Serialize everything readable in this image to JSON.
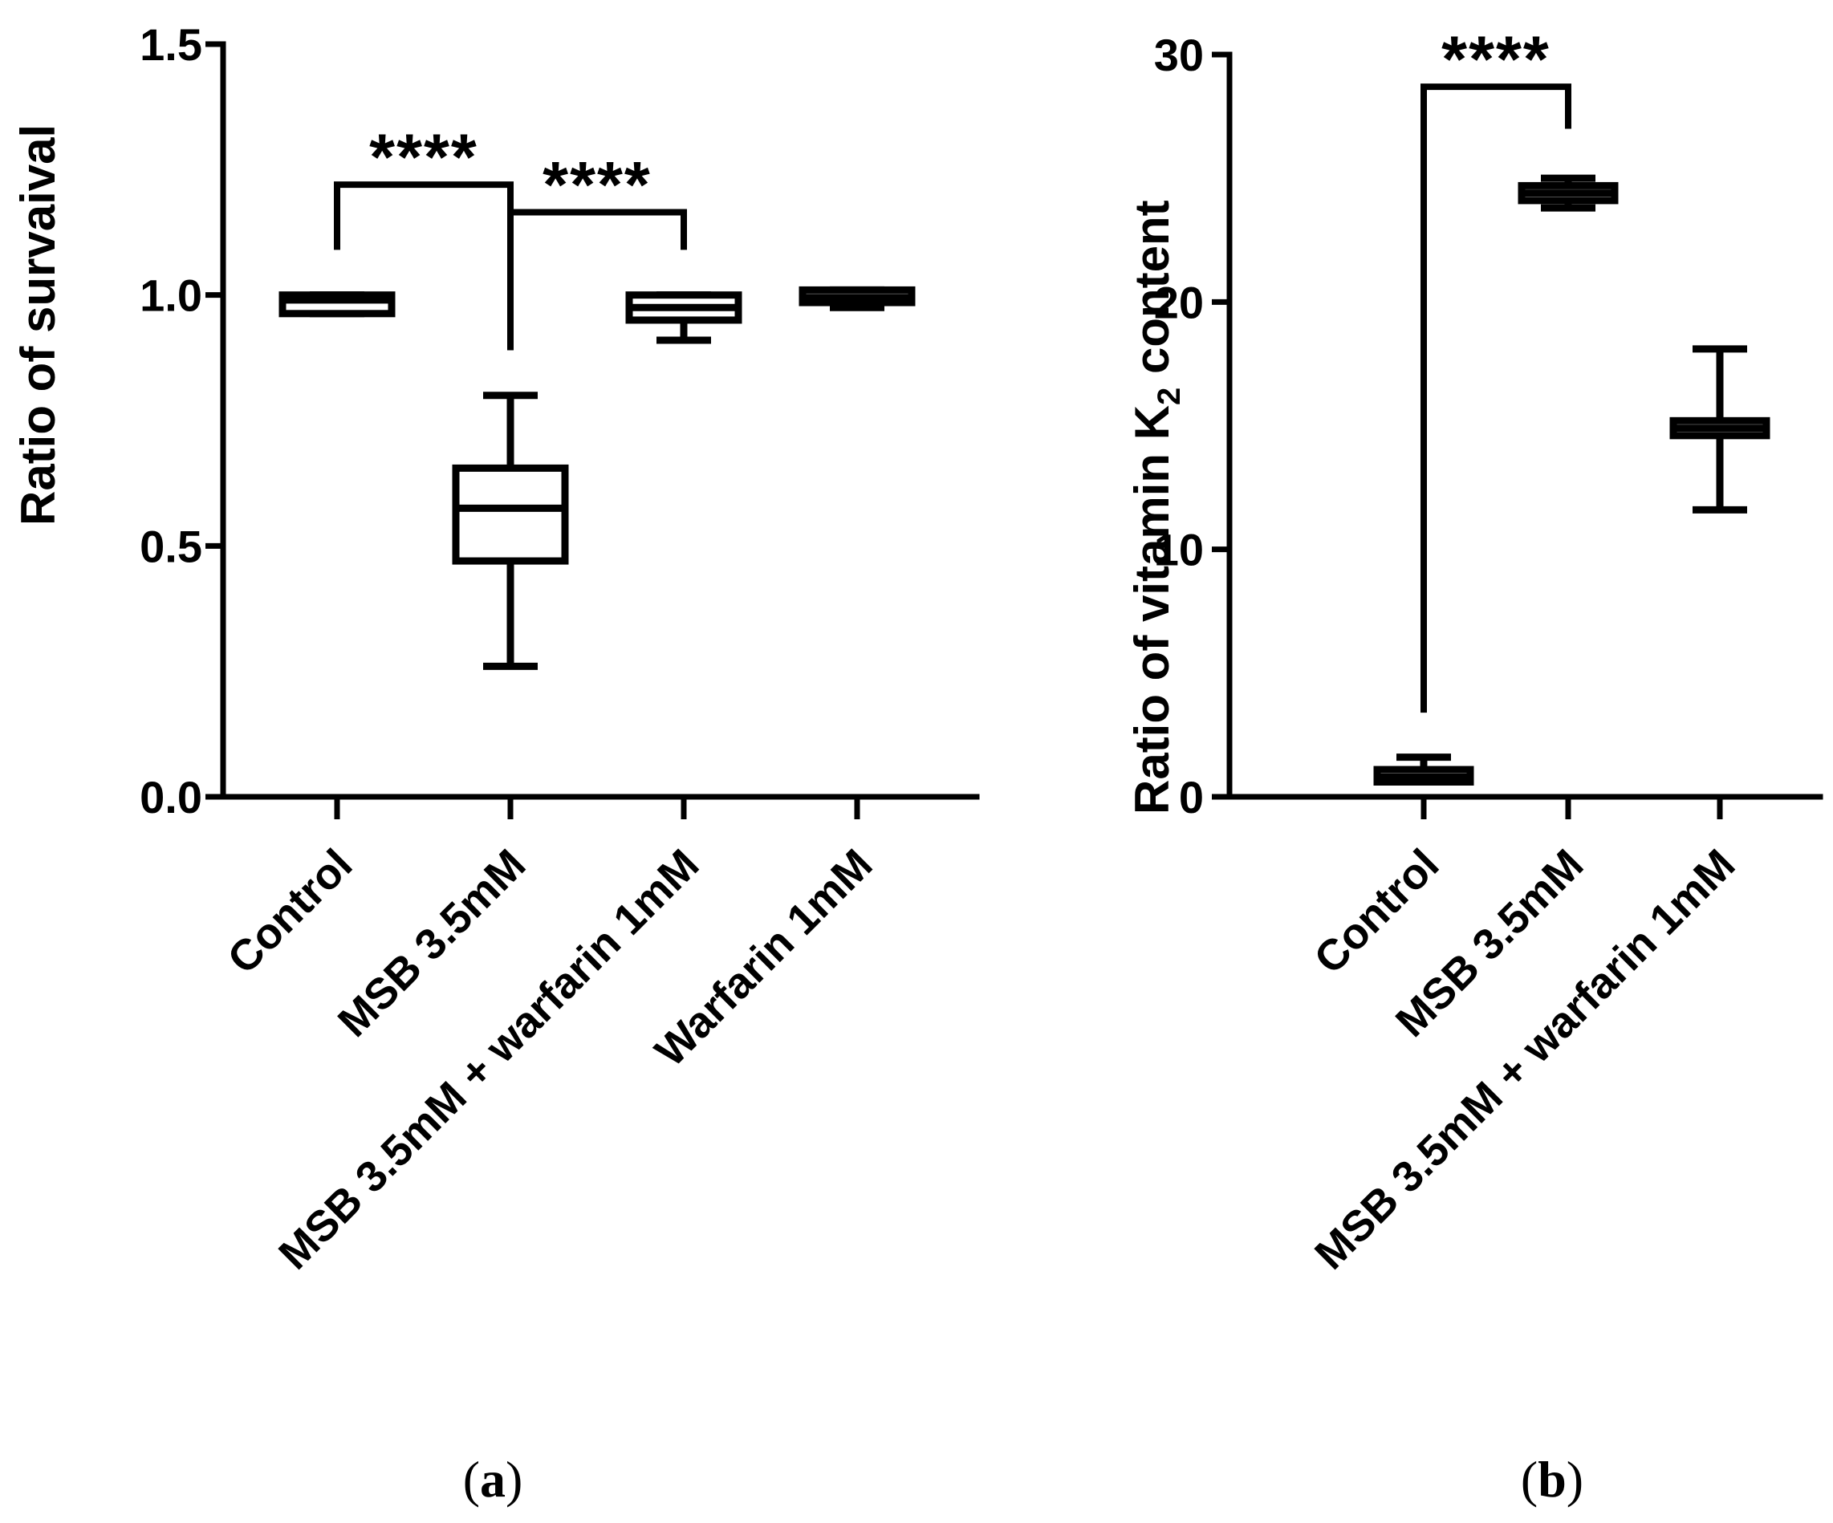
{
  "chart_data": [
    {
      "panel": "a",
      "panel_label": {
        "open": "(",
        "letter": "a",
        "close": ")"
      },
      "type": "box",
      "ylabel": "Ratio of survaival",
      "ylim": [
        0,
        1.5
      ],
      "yticks": [
        0.0,
        0.5,
        1.0,
        1.5
      ],
      "ytick_labels": [
        "0.0",
        "0.5",
        "1.0",
        "1.5"
      ],
      "categories": [
        "Control",
        "MSB 3.5mM",
        "MSB 3.5mM + warfarin 1mM",
        "Warfarin 1mM"
      ],
      "boxes": [
        {
          "min": 0.963,
          "q1": 0.963,
          "median": 0.99,
          "q3": 1.0,
          "max": 1.0
        },
        {
          "min": 0.26,
          "q1": 0.47,
          "median": 0.575,
          "q3": 0.655,
          "max": 0.8
        },
        {
          "min": 0.91,
          "q1": 0.95,
          "median": 0.975,
          "q3": 1.0,
          "max": 1.0
        },
        {
          "min": 0.975,
          "q1": 0.985,
          "median": 0.995,
          "q3": 1.01,
          "max": 1.01
        }
      ],
      "significance": [
        {
          "from": 0,
          "to": 1,
          "label": "****",
          "y": 1.22
        },
        {
          "from": 1,
          "to": 2,
          "label": "****",
          "y": 1.165
        }
      ]
    },
    {
      "panel": "b",
      "panel_label": {
        "open": "(",
        "letter": "b",
        "close": ")"
      },
      "type": "box",
      "ylabel_main": "Ratio of vitamin K",
      "ylabel_sub": "2",
      "ylabel_end": " content",
      "ylim": [
        0,
        30
      ],
      "yticks": [
        0,
        10,
        20,
        30
      ],
      "ytick_labels": [
        "0",
        "10",
        "20",
        "30"
      ],
      "categories": [
        "Control",
        "MSB 3.5mM",
        "MSB 3.5mM + warfarin 1mM"
      ],
      "boxes": [
        {
          "min": 0.6,
          "q1": 0.6,
          "median": 0.8,
          "q3": 1.1,
          "max": 1.6
        },
        {
          "min": 23.8,
          "q1": 24.1,
          "median": 24.4,
          "q3": 24.7,
          "max": 25.0
        },
        {
          "min": 11.6,
          "q1": 14.6,
          "median": 14.9,
          "q3": 15.2,
          "max": 18.1
        }
      ],
      "significance": [
        {
          "from": 0,
          "to": 1,
          "label": "****",
          "y": 28.7
        }
      ]
    }
  ]
}
